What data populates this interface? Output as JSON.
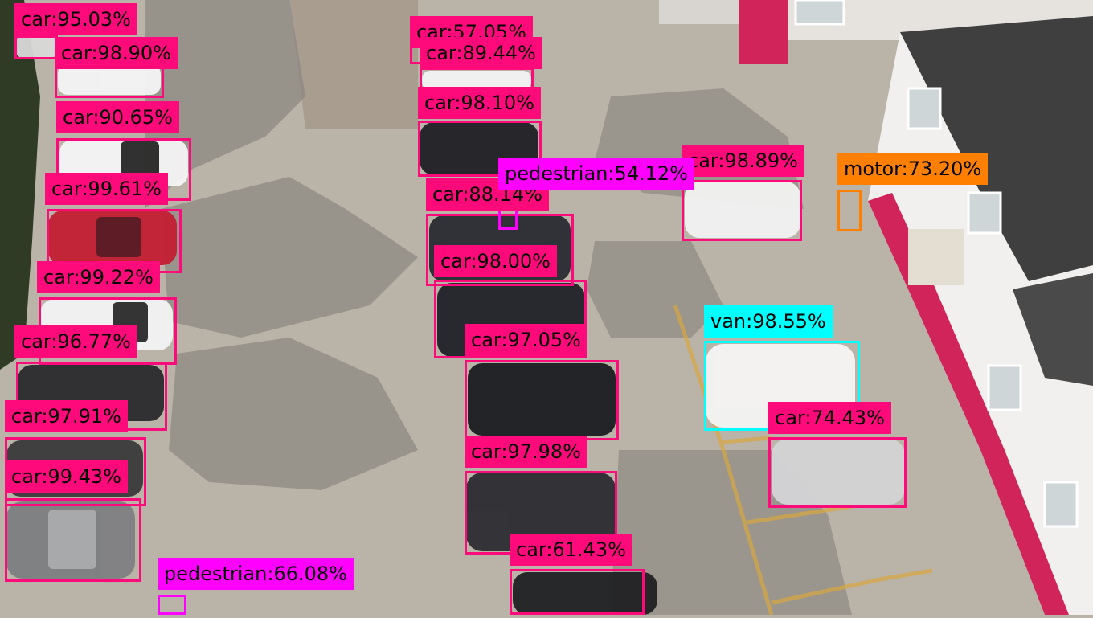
{
  "image": {
    "description_colors": {
      "ground": "#b9b3a8",
      "shadow": "#8f8a82",
      "building_wall": "#f2f0ee",
      "building_trim": "#d0245a",
      "roof": "#3f3f3f",
      "trees": "#2f3b25"
    }
  },
  "class_colors": {
    "car": "#ff0a7a",
    "pedestrian": "#ff00ff",
    "van": "#00ffff",
    "motor": "#ff8000"
  },
  "detections": [
    {
      "id": "car-1",
      "label": "car:95.03%",
      "cls": "car"
    },
    {
      "id": "car-2",
      "label": "car:98.90%",
      "cls": "car"
    },
    {
      "id": "car-3",
      "label": "car:90.65%",
      "cls": "car"
    },
    {
      "id": "car-4",
      "label": "car:99.61%",
      "cls": "car"
    },
    {
      "id": "car-5",
      "label": "car:99.22%",
      "cls": "car"
    },
    {
      "id": "car-6",
      "label": "car:96.77%",
      "cls": "car"
    },
    {
      "id": "car-7",
      "label": "car:97.91%",
      "cls": "car"
    },
    {
      "id": "car-8",
      "label": "car:99.43%",
      "cls": "car"
    },
    {
      "id": "car-9",
      "label": "car:57.05%",
      "cls": "car"
    },
    {
      "id": "car-10",
      "label": "car:89.44%",
      "cls": "car"
    },
    {
      "id": "car-11",
      "label": "car:98.10%",
      "cls": "car"
    },
    {
      "id": "car-12",
      "label": "car:88.14%",
      "cls": "car"
    },
    {
      "id": "car-13",
      "label": "car:98.00%",
      "cls": "car"
    },
    {
      "id": "car-14",
      "label": "car:97.05%",
      "cls": "car"
    },
    {
      "id": "car-15",
      "label": "car:97.98%",
      "cls": "car"
    },
    {
      "id": "car-16",
      "label": "car:61.43%",
      "cls": "car"
    },
    {
      "id": "car-17",
      "label": "car:98.89%",
      "cls": "car"
    },
    {
      "id": "car-18",
      "label": "car:74.43%",
      "cls": "car"
    },
    {
      "id": "van-1",
      "label": "van:98.55%",
      "cls": "van"
    },
    {
      "id": "motor-1",
      "label": "motor:73.20%",
      "cls": "motor"
    },
    {
      "id": "pedestrian-1",
      "label": "pedestrian:54.12%",
      "cls": "pedestrian"
    },
    {
      "id": "pedestrian-2",
      "label": "pedestrian:66.08%",
      "cls": "pedestrian"
    }
  ]
}
